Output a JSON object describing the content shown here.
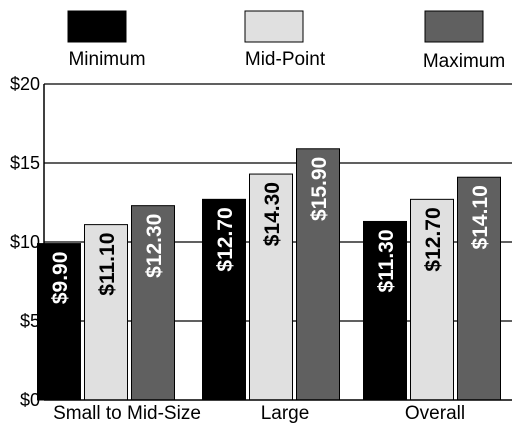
{
  "chart_data": {
    "type": "bar",
    "categories": [
      "Small to Mid-Size",
      "Large",
      "Overall"
    ],
    "series": [
      {
        "name": "Minimum",
        "values": [
          9.9,
          12.7,
          11.3
        ],
        "labels": [
          "$9.90",
          "$12.70",
          "$11.30"
        ],
        "color": "#000000",
        "label_color": "#ffffff"
      },
      {
        "name": "Mid-Point",
        "values": [
          11.1,
          14.3,
          12.7
        ],
        "labels": [
          "$11.10",
          "$14.30",
          "$12.70"
        ],
        "color": "#e0e0e0",
        "label_color": "#000000"
      },
      {
        "name": "Maximum",
        "values": [
          12.3,
          15.9,
          14.1
        ],
        "labels": [
          "$12.30",
          "$15.90",
          "$14.10"
        ],
        "color": "#606060",
        "label_color": "#ffffff"
      }
    ],
    "ylim": [
      0,
      20
    ],
    "yticks": [
      0,
      5,
      10,
      15,
      20
    ],
    "ytick_labels": [
      "$0",
      "$5",
      "$10",
      "$15",
      "$20"
    ],
    "grid": true,
    "legend_position": "top"
  }
}
